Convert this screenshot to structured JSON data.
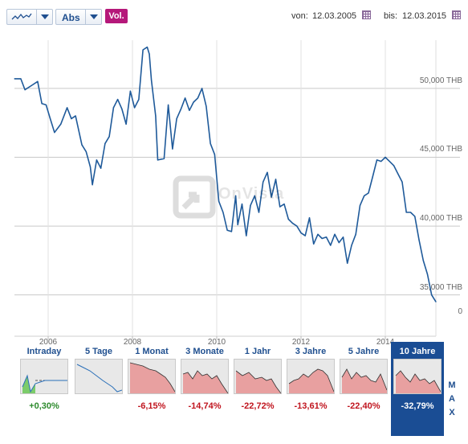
{
  "toolbar": {
    "chart_type_icon": "line-chart-icon",
    "scale_label": "Abs",
    "volume_label": "Vol.",
    "from_label": "von:",
    "from_date": "12.03.2005",
    "to_label": "bis:",
    "to_date": "12.03.2015",
    "calendar_icon": "calendar-icon",
    "accent_color": "#1f4f8f",
    "volume_color": "#b5187a"
  },
  "watermark": {
    "text": "OnVista"
  },
  "chart_data": {
    "type": "line",
    "title": "",
    "xlabel": "",
    "ylabel": "",
    "x_tick_labels": [
      "2006",
      "2008",
      "2010",
      "2012",
      "2014"
    ],
    "x_ticks": [
      2006,
      2008,
      2010,
      2012,
      2014
    ],
    "y_tick_labels": [
      "50,000 THB",
      "45,000 THB",
      "40,000 THB",
      "35,000 THB",
      "0"
    ],
    "xlim": [
      2005.2,
      2015.2
    ],
    "ylim": [
      32000,
      53500
    ],
    "grid": true,
    "line_color": "#1f5a9a",
    "series": [
      {
        "x": [
          2005.2,
          2005.35,
          2005.45,
          2005.6,
          2005.75,
          2005.85,
          2005.95,
          2006.05,
          2006.15,
          2006.3,
          2006.45,
          2006.55,
          2006.65,
          2006.8,
          2006.9,
          2007.0,
          2007.05,
          2007.15,
          2007.25,
          2007.35,
          2007.45,
          2007.55,
          2007.65,
          2007.75,
          2007.85,
          2007.95,
          2008.05,
          2008.15,
          2008.25,
          2008.35,
          2008.4,
          2008.45,
          2008.55,
          2008.6,
          2008.75,
          2008.85,
          2008.95,
          2009.05,
          2009.15,
          2009.25,
          2009.35,
          2009.45,
          2009.55,
          2009.65,
          2009.75,
          2009.85,
          2009.95,
          2010.05,
          2010.15,
          2010.25,
          2010.35,
          2010.45,
          2010.5,
          2010.6,
          2010.7,
          2010.8,
          2010.9,
          2011.0,
          2011.1,
          2011.2,
          2011.3,
          2011.4,
          2011.5,
          2011.6,
          2011.7,
          2011.8,
          2011.9,
          2012.0,
          2012.1,
          2012.2,
          2012.3,
          2012.4,
          2012.5,
          2012.6,
          2012.7,
          2012.8,
          2012.9,
          2013.0,
          2013.1,
          2013.2,
          2013.3,
          2013.4,
          2013.5,
          2013.6,
          2013.7,
          2013.8,
          2013.9,
          2014.0,
          2014.1,
          2014.2,
          2014.3,
          2014.4,
          2014.5,
          2014.6,
          2014.7,
          2014.8,
          2014.9,
          2015.0,
          2015.1,
          2015.2
        ],
        "y": [
          50700,
          50700,
          49900,
          50200,
          50500,
          48900,
          48800,
          47800,
          46800,
          47400,
          48600,
          47800,
          48000,
          45900,
          45400,
          44300,
          43000,
          44800,
          44200,
          46000,
          46500,
          48600,
          49200,
          48500,
          47400,
          49800,
          48600,
          49200,
          52800,
          53000,
          52500,
          50600,
          48000,
          44800,
          44900,
          48800,
          45600,
          47800,
          48500,
          49300,
          48400,
          49000,
          49300,
          50000,
          48700,
          46000,
          45200,
          41800,
          41000,
          39700,
          39600,
          42200,
          40100,
          41600,
          39300,
          41500,
          42200,
          41000,
          43200,
          43900,
          42100,
          43400,
          41400,
          41600,
          40500,
          40200,
          40000,
          39500,
          39300,
          40600,
          38700,
          39400,
          39100,
          39200,
          38600,
          39400,
          38800,
          39200,
          37300,
          38600,
          39400,
          41500,
          42200,
          42400,
          43600,
          44800,
          44700,
          45000,
          44700,
          44400,
          43800,
          43200,
          41000,
          41000,
          40700,
          39000,
          37500,
          36500,
          35000,
          34500
        ]
      }
    ]
  },
  "periods": [
    {
      "label": "Intraday",
      "change": "+0,30%",
      "trend": "pos"
    },
    {
      "label": "5 Tage",
      "change": "",
      "trend": "neg"
    },
    {
      "label": "1 Monat",
      "change": "-6,15%",
      "trend": "neg"
    },
    {
      "label": "3 Monate",
      "change": "-14,74%",
      "trend": "neg"
    },
    {
      "label": "1 Jahr",
      "change": "-22,72%",
      "trend": "neg"
    },
    {
      "label": "3 Jahre",
      "change": "-13,61%",
      "trend": "neg"
    },
    {
      "label": "5 Jahre",
      "change": "-22,40%",
      "trend": "neg"
    },
    {
      "label": "10 Jahre",
      "change": "-32,79%",
      "trend": "neg",
      "active": true
    }
  ],
  "max_button": {
    "letters": [
      "M",
      "A",
      "X"
    ]
  }
}
